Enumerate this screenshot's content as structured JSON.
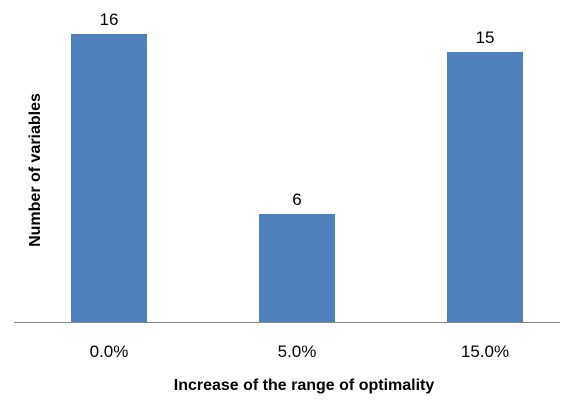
{
  "chart_data": {
    "type": "bar",
    "categories": [
      "0.0%",
      "5.0%",
      "15.0%"
    ],
    "values": [
      16,
      6,
      15
    ],
    "data_labels": [
      "16",
      "6",
      "15"
    ],
    "title": "",
    "xlabel": "Increase of the range of optimality",
    "ylabel": "Number of variables",
    "ylim": [
      0,
      16
    ],
    "grid": false,
    "legend": "none",
    "bar_color": "#4F81BD"
  }
}
